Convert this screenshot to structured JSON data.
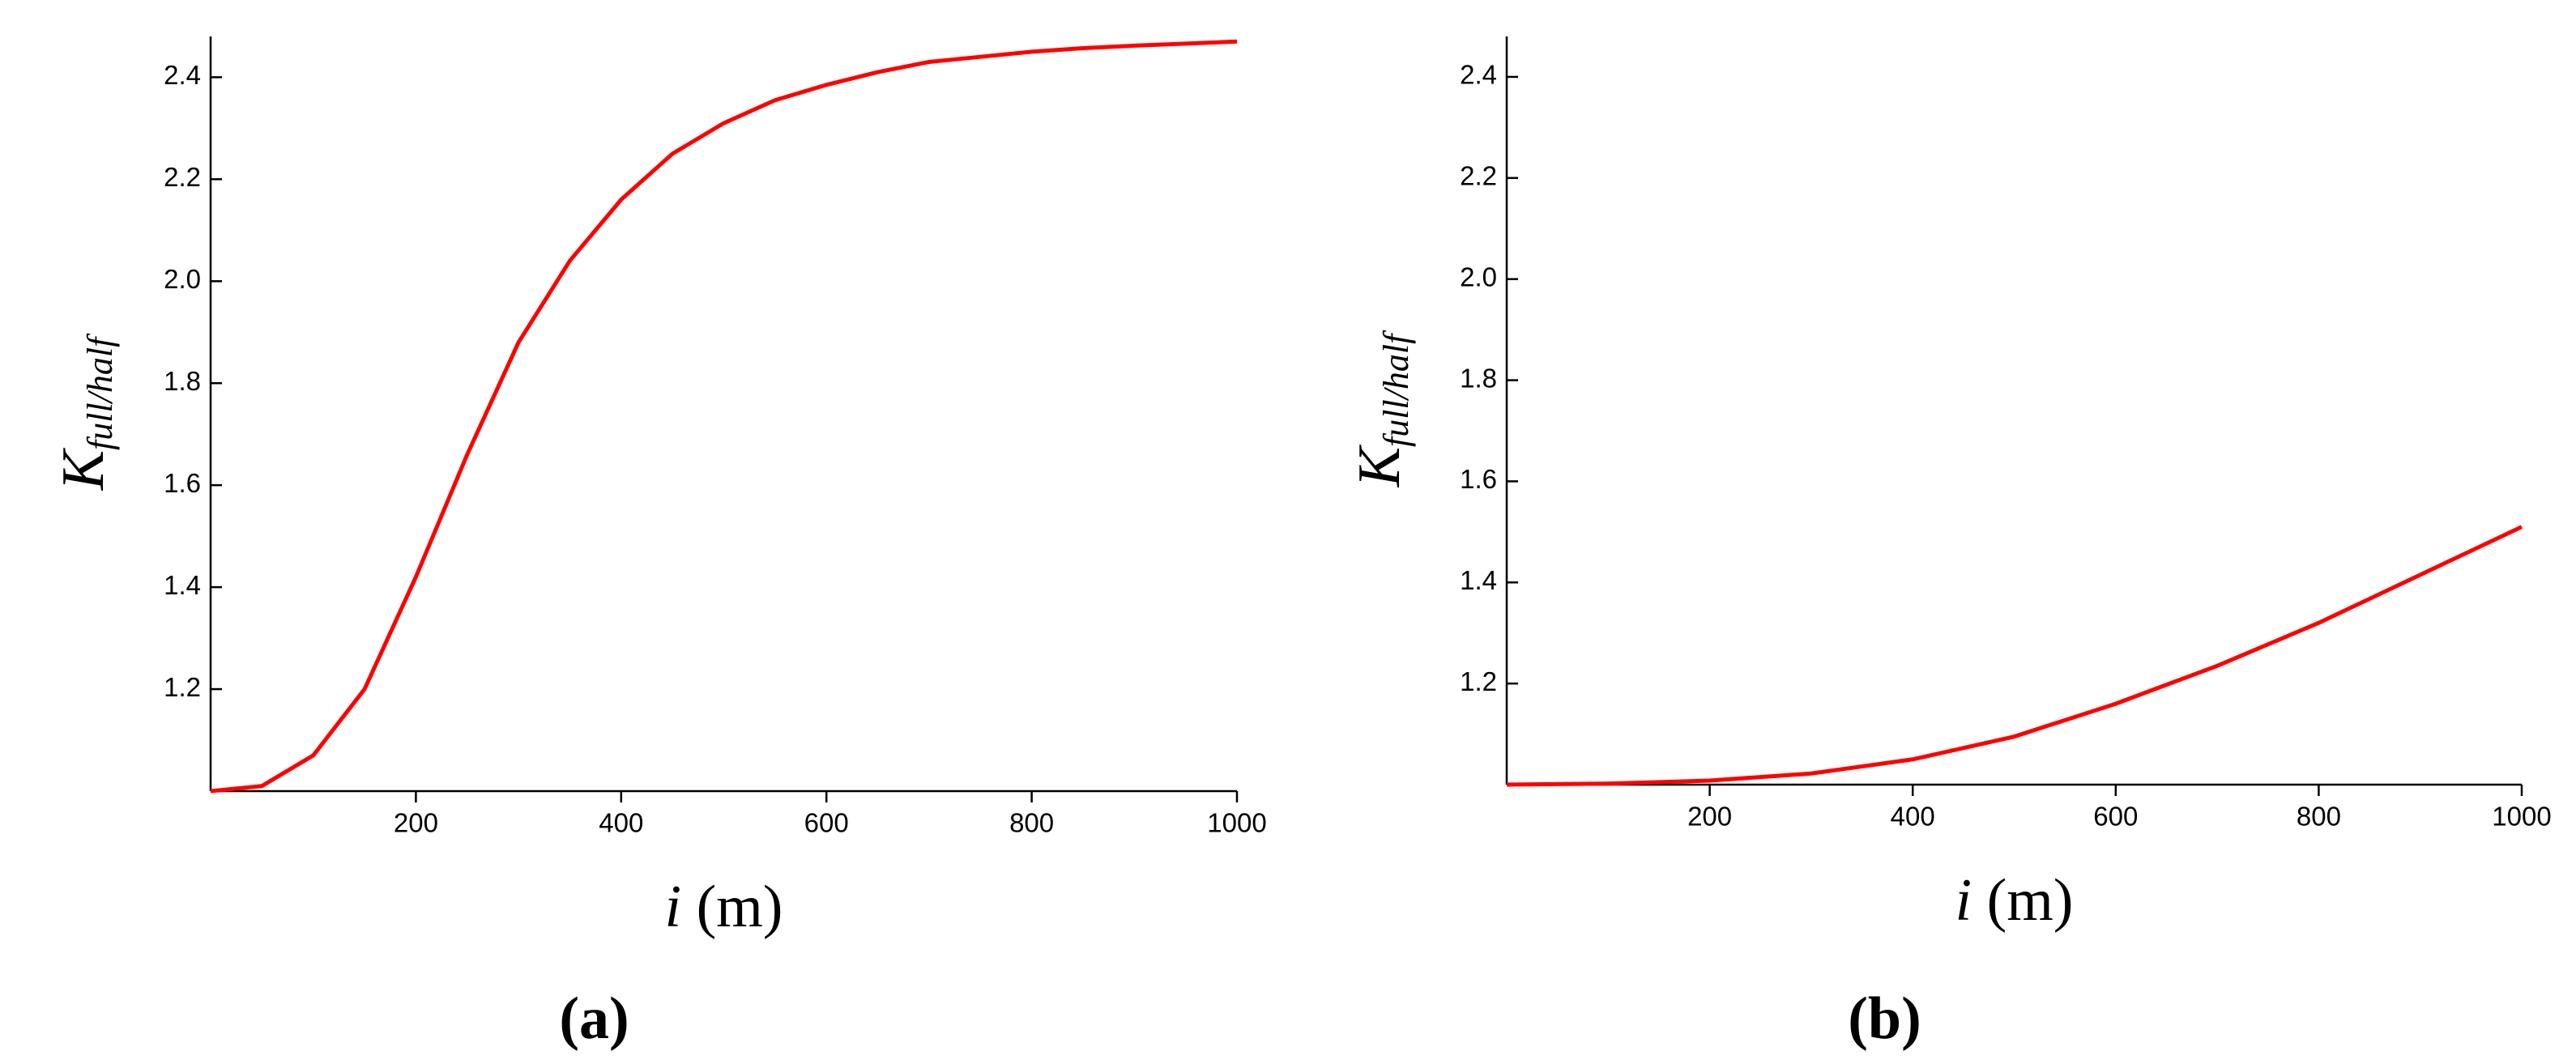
{
  "chart_data": [
    {
      "type": "line",
      "panel": "(a)",
      "ylabel": "K",
      "ylabel_sub": "full/half",
      "xlabel": "i",
      "xlabel_unit": "(m)",
      "x": [
        0,
        50,
        100,
        150,
        200,
        250,
        300,
        350,
        400,
        450,
        500,
        550,
        600,
        650,
        700,
        750,
        800,
        850,
        900,
        950,
        1000
      ],
      "values": [
        1.0,
        1.01,
        1.07,
        1.2,
        1.42,
        1.66,
        1.88,
        2.04,
        2.16,
        2.25,
        2.31,
        2.355,
        2.385,
        2.41,
        2.43,
        2.44,
        2.45,
        2.457,
        2.462,
        2.466,
        2.47
      ],
      "color": "#ff0000",
      "xlim": [
        0,
        1000
      ],
      "ylim": [
        1.0,
        2.48
      ],
      "xticks": [
        200,
        400,
        600,
        800,
        1000
      ],
      "yticks": [
        1.2,
        1.4,
        1.6,
        1.8,
        {
          "value": 2,
          "label": "2.0"
        },
        2.2,
        2.4
      ]
    },
    {
      "type": "line",
      "panel": "(b)",
      "ylabel": "K",
      "ylabel_sub": "full/half",
      "xlabel": "i",
      "xlabel_unit": "(m)",
      "x": [
        0,
        100,
        200,
        300,
        400,
        500,
        600,
        700,
        800,
        900,
        1000
      ],
      "values": [
        1.0,
        1.002,
        1.008,
        1.022,
        1.05,
        1.095,
        1.16,
        1.235,
        1.32,
        1.415,
        1.51
      ],
      "color": "#ff0000",
      "xlim": [
        0,
        1000
      ],
      "ylim": [
        1.0,
        2.48
      ],
      "xticks": [
        200,
        400,
        600,
        800,
        1000
      ],
      "yticks": [
        1.2,
        1.4,
        1.6,
        1.8,
        {
          "value": 2,
          "label": "2.0"
        },
        2.2,
        2.4
      ]
    }
  ]
}
